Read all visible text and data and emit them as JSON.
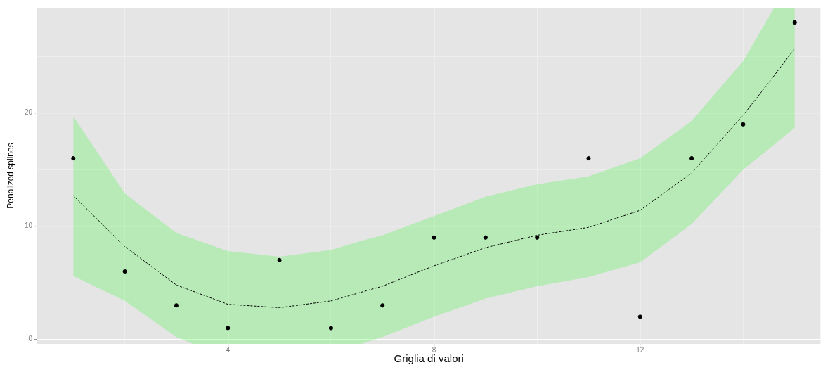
{
  "chart_data": {
    "type": "scatter",
    "xlabel": "Griglia di valori",
    "ylabel": "Penalized splines",
    "xlim": [
      0.3,
      15.5
    ],
    "ylim": [
      -0.4,
      29.3
    ],
    "xticks": [
      {
        "value": 2,
        "label": null
      },
      4,
      {
        "value": 6,
        "label": null
      },
      8,
      {
        "value": 10,
        "label": null
      },
      12,
      {
        "value": 14,
        "label": null
      }
    ],
    "yticks": [
      0,
      {
        "value": 5,
        "label": null
      },
      10,
      {
        "value": 15,
        "label": null
      },
      20,
      {
        "value": 25,
        "label": null
      }
    ],
    "grid": true,
    "series": [
      {
        "color": "#000000",
        "marker": "circle",
        "x": [
          1,
          2,
          3,
          4,
          5,
          6,
          7,
          8,
          9,
          10,
          11,
          12,
          13,
          14,
          15
        ],
        "values": [
          16,
          6,
          3,
          1,
          7,
          1,
          3,
          9,
          9,
          9,
          16,
          2,
          16,
          19,
          28
        ]
      },
      {
        "type": "line",
        "color": "#000000",
        "line_style": "dashed",
        "marker": "none",
        "x": [
          1,
          2,
          3,
          3.32,
          4,
          5,
          6,
          6.59,
          7,
          8,
          9,
          10,
          11,
          12,
          13,
          14,
          14.6,
          15
        ],
        "values": [
          12.7,
          8.2,
          4.8,
          4.26,
          3.1,
          2.8,
          3.4,
          4.17,
          4.7,
          6.5,
          8.1,
          9.2,
          9.9,
          11.4,
          14.7,
          19.8,
          23.3,
          25.7
        ],
        "lower": [
          5.6,
          3.4,
          0.2,
          -0.4,
          -0.4,
          -0.4,
          -0.4,
          -0.4,
          0.2,
          2.0,
          3.6,
          4.7,
          5.5,
          6.8,
          10.2,
          15.0,
          17.2,
          18.7
        ],
        "upper": [
          19.7,
          12.9,
          9.4,
          8.9,
          7.8,
          7.3,
          7.9,
          8.7,
          9.2,
          10.9,
          12.6,
          13.7,
          14.4,
          16.0,
          19.3,
          24.6,
          29.3,
          29.3
        ]
      }
    ]
  }
}
